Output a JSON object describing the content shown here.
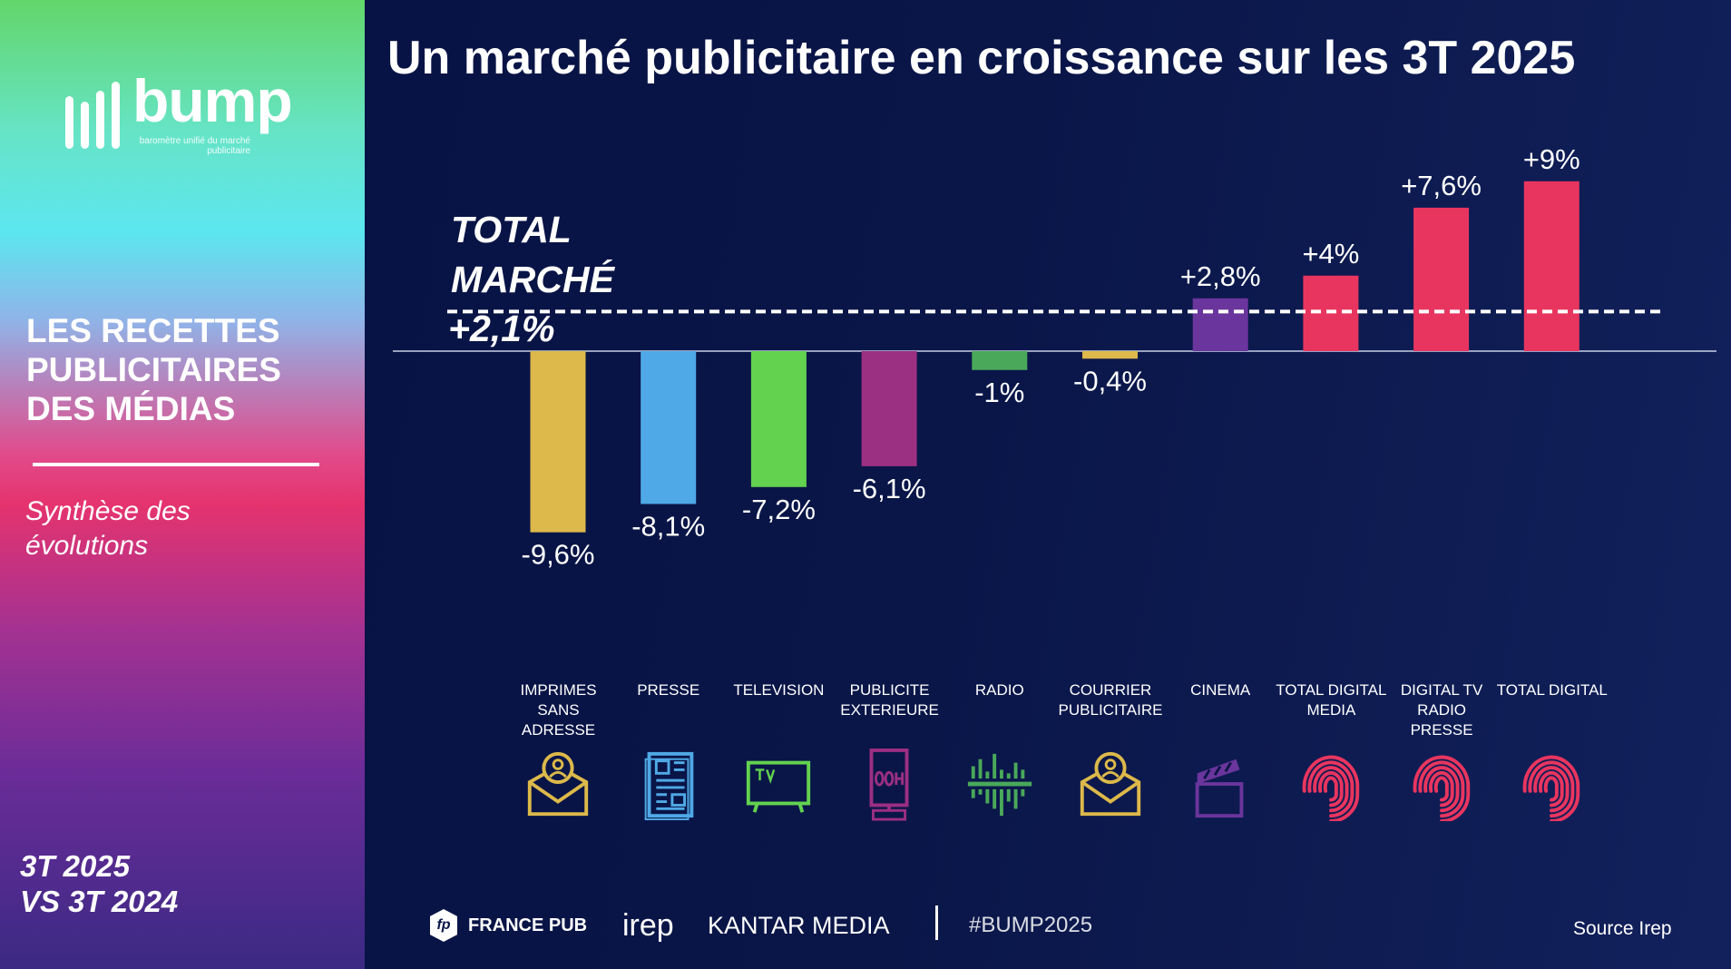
{
  "sidebar": {
    "logo_text": "bump",
    "logo_subtitle": "baromètre unifié du marché publicitaire",
    "title": "LES RECETTES PUBLICITAIRES DES MÉDIAS",
    "subtitle_line1": "Synthèse des",
    "subtitle_line2": "évolutions",
    "period_line1": "3T 2025",
    "period_line2": "VS 3T 2024"
  },
  "header": {
    "title": "Un marché publicitaire en croissance sur les 3T 2025"
  },
  "chart_data": {
    "type": "bar",
    "title": "Un marché publicitaire en croissance sur les 3T 2025",
    "categories": [
      "IMPRIMES SANS ADRESSE",
      "PRESSE",
      "TELEVISION",
      "PUBLICITE EXTERIEURE",
      "RADIO",
      "COURRIER PUBLICITAIRE",
      "CINEMA",
      "TOTAL DIGITAL MEDIA",
      "DIGITAL TV RADIO PRESSE",
      "TOTAL DIGITAL"
    ],
    "values": [
      -9.6,
      -8.1,
      -7.2,
      -6.1,
      -1,
      -0.4,
      2.8,
      4,
      7.6,
      9
    ],
    "data_labels": [
      "-9,6%",
      "-8,1%",
      "-7,2%",
      "-6,1%",
      "-1%",
      "-0,4%",
      "+2,8%",
      "+4%",
      "+7,6%",
      "+9%"
    ],
    "colors": [
      "#dcb94a",
      "#4fa9e6",
      "#63d24f",
      "#9b2f82",
      "#4aa85a",
      "#dcb94a",
      "#6a359c",
      "#e8355f",
      "#e8355f",
      "#e8355f"
    ],
    "icons": [
      "mail-person-icon",
      "newspaper-icon",
      "tv-icon",
      "ooh-billboard-icon",
      "radio-wave-icon",
      "mail-person-icon",
      "clapperboard-icon",
      "fingerprint-icon",
      "fingerprint-icon",
      "fingerprint-icon"
    ],
    "reference_line": {
      "label_line1": "TOTAL",
      "label_line2": "MARCHÉ",
      "value": 2.1,
      "value_label": "+2,1%",
      "style": "dashed"
    },
    "ylim": [
      -10,
      9.5
    ],
    "grid": false
  },
  "footer": {
    "logos": [
      "FRANCE PUB",
      "irep",
      "KANTAR MEDIA"
    ],
    "fp_badge": "fp",
    "hashtag": "#BUMP2025",
    "source": "Source Irep"
  },
  "colors": {
    "background": "#0a1648",
    "text": "#ffffff"
  }
}
